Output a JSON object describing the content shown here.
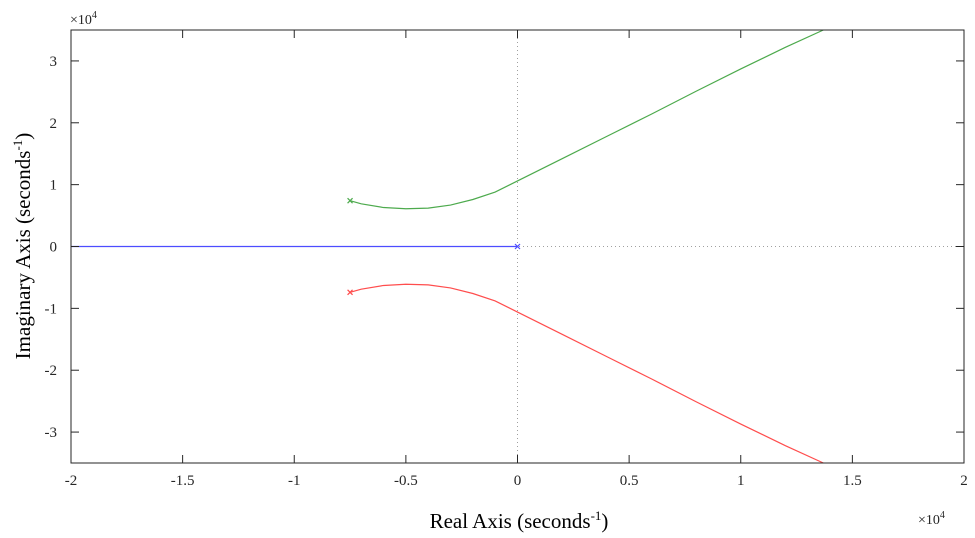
{
  "chart_data": {
    "type": "line",
    "title": "",
    "xlabel": "Real Axis (seconds",
    "xlabel_sup": "-1",
    "xlabel_close": ")",
    "ylabel": "Imaginary Axis (seconds",
    "ylabel_sup": "-1",
    "ylabel_close": ")",
    "x_multiplier": "×10",
    "x_multiplier_exp": "4",
    "y_multiplier": "×10",
    "y_multiplier_exp": "4",
    "xlim": [
      -2,
      2
    ],
    "ylim": [
      -3.5,
      3.5
    ],
    "x_ticks": [
      -2,
      -1.5,
      -1,
      -0.5,
      0,
      0.5,
      1,
      1.5,
      2
    ],
    "x_tick_labels": [
      "-2",
      "-1.5",
      "-1",
      "-0.5",
      "0",
      "0.5",
      "1",
      "1.5",
      "2"
    ],
    "y_ticks": [
      -3,
      -2,
      -1,
      0,
      1,
      2,
      3
    ],
    "y_tick_labels": [
      "-3",
      "-2",
      "-1",
      "0",
      "1",
      "2",
      "3"
    ],
    "grid": false,
    "zero_lines": true,
    "series": [
      {
        "color": "#4d4dff",
        "points": [
          [
            -2.0,
            0.0
          ],
          [
            0.0,
            0.0
          ]
        ]
      },
      {
        "color": "#4daa4d",
        "points": [
          [
            -0.75,
            0.74
          ],
          [
            -0.7,
            0.69
          ],
          [
            -0.6,
            0.63
          ],
          [
            -0.5,
            0.61
          ],
          [
            -0.4,
            0.62
          ],
          [
            -0.3,
            0.67
          ],
          [
            -0.2,
            0.76
          ],
          [
            -0.1,
            0.88
          ],
          [
            0.0,
            1.06
          ],
          [
            0.2,
            1.42
          ],
          [
            0.4,
            1.78
          ],
          [
            0.6,
            2.14
          ],
          [
            0.8,
            2.51
          ],
          [
            1.0,
            2.87
          ],
          [
            1.2,
            3.22
          ],
          [
            1.37,
            3.5
          ]
        ]
      },
      {
        "color": "#ff4d4d",
        "points": [
          [
            -0.75,
            -0.74
          ],
          [
            -0.7,
            -0.69
          ],
          [
            -0.6,
            -0.63
          ],
          [
            -0.5,
            -0.61
          ],
          [
            -0.4,
            -0.62
          ],
          [
            -0.3,
            -0.67
          ],
          [
            -0.2,
            -0.76
          ],
          [
            -0.1,
            -0.88
          ],
          [
            0.0,
            -1.06
          ],
          [
            0.2,
            -1.42
          ],
          [
            0.4,
            -1.78
          ],
          [
            0.6,
            -2.14
          ],
          [
            0.8,
            -2.51
          ],
          [
            1.0,
            -2.87
          ],
          [
            1.2,
            -3.22
          ],
          [
            1.37,
            -3.5
          ]
        ]
      }
    ],
    "poles": [
      {
        "x": -0.75,
        "y": 0.74,
        "color": "#4daa4d"
      },
      {
        "x": -0.75,
        "y": -0.74,
        "color": "#ff4d4d"
      },
      {
        "x": 0.0,
        "y": 0.0,
        "color": "#4d4dff"
      }
    ],
    "colors": {
      "axis": "#262626",
      "zero_line": "#a0a0a0",
      "background": "#ffffff"
    }
  }
}
